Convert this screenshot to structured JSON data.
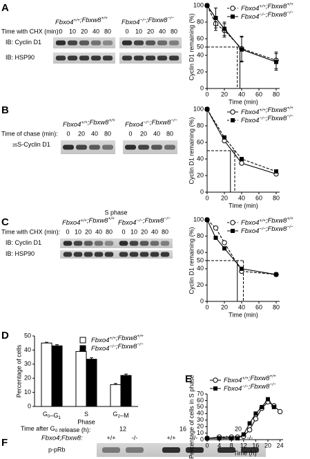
{
  "panel_letters": [
    "A",
    "B",
    "C",
    "D",
    "E",
    "F"
  ],
  "blot_a": {
    "genotypes": [
      "Fbxo4+/+;Fbxw8+/+",
      "Fbxo4−/−;Fbxw8−/−"
    ],
    "time_label": "Time with CHX (min):",
    "times": [
      "0",
      "10",
      "20",
      "40",
      "80"
    ],
    "rows": [
      "IB: Cyclin D1",
      "IB: HSP90"
    ]
  },
  "blot_b": {
    "genotypes": [
      "Fbxo4+/+;Fbxw8+/+",
      "Fbxo4−/−;Fbxw8−/−"
    ],
    "time_label": "Time of chase (min):",
    "times": [
      "0",
      "20",
      "40",
      "80"
    ],
    "rows": [
      "35S-Cyclin D1"
    ]
  },
  "blot_c": {
    "heading": "S phase",
    "genotypes": [
      "Fbxo4+/+;Fbxw8+/+",
      "Fbxo4−/−;Fbxw8−/−"
    ],
    "time_label": "Time with CHX (min):",
    "times": [
      "0",
      "10",
      "20",
      "40",
      "80"
    ],
    "rows": [
      "IB: Cyclin D1",
      "IB: HSP90"
    ]
  },
  "blot_f": {
    "time_label": "Time after G0 release (h):",
    "times": [
      "12",
      "16",
      "20"
    ],
    "genotype_label": "Fbxo4;Fbxw8:",
    "genotypes": [
      "+/+",
      "-/-"
    ],
    "rows": [
      "p-pRb"
    ]
  },
  "chart_data": [
    {
      "type": "line",
      "xlabel": "Time (min)",
      "ylabel": "Cyclin D1 remaining (%)",
      "x": [
        0,
        10,
        20,
        40,
        80
      ],
      "xlim": [
        0,
        84
      ],
      "xticks": [
        0,
        20,
        40,
        60,
        80
      ],
      "ylim": [
        0,
        100
      ],
      "yticks": [
        0,
        20,
        40,
        50,
        60,
        80,
        100
      ],
      "reference_y": 50,
      "legend": "upper right",
      "series": [
        {
          "name": "Fbxo4+/+;Fbxw8+/+",
          "color": "#000000",
          "marker": "open-circle",
          "dashed": true,
          "values": [
            100,
            78,
            70,
            48,
            34
          ],
          "errors": [
            0,
            8,
            8,
            15,
            10
          ],
          "half_life": 35
        },
        {
          "name": "Fbxo4−/−;Fbxw8−/−",
          "color": "#000000",
          "marker": "filled-square",
          "dashed": false,
          "values": [
            100,
            85,
            72,
            47,
            32
          ],
          "errors": [
            0,
            12,
            8,
            15,
            10
          ],
          "half_life": 38
        }
      ]
    },
    {
      "type": "line",
      "xlabel": "Time (min)",
      "ylabel": "Cyclin D1 remaining (%)",
      "x": [
        0,
        20,
        40,
        80
      ],
      "xlim": [
        0,
        84
      ],
      "xticks": [
        0,
        20,
        40,
        60,
        80
      ],
      "ylim": [
        0,
        100
      ],
      "yticks": [
        0,
        20,
        40,
        60,
        80,
        100
      ],
      "reference_y": 50,
      "legend": "upper right",
      "series": [
        {
          "name": "Fbxo4+/+;Fbxw8+/+",
          "color": "#000000",
          "marker": "open-circle",
          "dashed": false,
          "values": [
            100,
            62,
            35,
            22
          ],
          "half_life": 27
        },
        {
          "name": "Fbxo4−/−;Fbxw8−/−",
          "color": "#000000",
          "marker": "filled-square",
          "dashed": true,
          "values": [
            100,
            66,
            40,
            25
          ],
          "half_life": 32
        }
      ]
    },
    {
      "type": "line",
      "xlabel": "Time (min)",
      "ylabel": "Cyclin D1 remaining (%)",
      "x": [
        0,
        10,
        20,
        40,
        80
      ],
      "xlim": [
        0,
        84
      ],
      "xticks": [
        0,
        20,
        40,
        60,
        80
      ],
      "ylim": [
        0,
        100
      ],
      "yticks": [
        0,
        20,
        40,
        50,
        60,
        80,
        100
      ],
      "reference_y": 50,
      "legend": "upper right",
      "series": [
        {
          "name": "Fbxo4+/+;Fbxw8+/+",
          "color": "#000000",
          "marker": "open-circle",
          "dashed": true,
          "values": [
            100,
            90,
            72,
            37,
            33
          ],
          "half_life": 42
        },
        {
          "name": "Fbxo4−/−;Fbxw8−/−",
          "color": "#000000",
          "marker": "filled-square",
          "dashed": false,
          "values": [
            100,
            78,
            65,
            40,
            33
          ],
          "half_life": 35
        }
      ]
    },
    {
      "type": "bar",
      "xlabel": "Phase",
      "ylabel": "Percentage of cells",
      "categories": [
        "G0–G1",
        "S",
        "G2–M"
      ],
      "ylim": [
        0,
        50
      ],
      "yticks": [
        0,
        10,
        20,
        30,
        40,
        50
      ],
      "legend": "upper right",
      "series": [
        {
          "name": "Fbxo4+/+;Fbxw8+/+",
          "color": "#ffffff",
          "values": [
            45,
            39,
            15.5
          ],
          "errors": [
            0.5,
            1,
            0.8
          ]
        },
        {
          "name": "Fbxo4−/−;Fbxw8−/−",
          "color": "#000000",
          "values": [
            43,
            33.5,
            22
          ],
          "errors": [
            0.8,
            1,
            1
          ]
        }
      ]
    },
    {
      "type": "line",
      "xlabel": "Time (h)",
      "ylabel": "Percentage of cells in S phase",
      "x": [
        0,
        4,
        8,
        10,
        12,
        14,
        16,
        18,
        20,
        22,
        24
      ],
      "xlim": [
        0,
        25
      ],
      "xticks": [
        0,
        4,
        8,
        12,
        16,
        20,
        24
      ],
      "ylim": [
        0,
        70
      ],
      "yticks": [
        0,
        10,
        20,
        30,
        40,
        50,
        60,
        70
      ],
      "legend": "upper left",
      "series": [
        {
          "name": "Fbxo4+/+;Fbxw8+/+",
          "color": "#000000",
          "marker": "open-circle",
          "dashed": false,
          "values": [
            2,
            4,
            4,
            4,
            5,
            15,
            32,
            48,
            58,
            52,
            43
          ]
        },
        {
          "name": "Fbxo4−/−;Fbxw8−/−",
          "color": "#000000",
          "marker": "filled-square",
          "dashed": false,
          "values": [
            2,
            2,
            2,
            2,
            8,
            25,
            40,
            50,
            62,
            50,
            null
          ]
        }
      ]
    }
  ]
}
